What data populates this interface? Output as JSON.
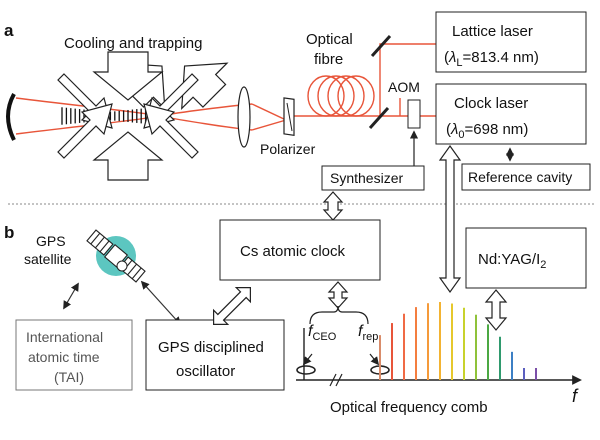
{
  "panel_a": {
    "letter": "a",
    "cooling_label": "Cooling and trapping",
    "fibre_label_1": "Optical",
    "fibre_label_2": "fibre",
    "polarizer_label": "Polarizer",
    "aom_label": "AOM",
    "lattice_laser": {
      "line1": "Lattice laser",
      "lambda_sub": "L",
      "lambda_value": "=813.4 nm"
    },
    "clock_laser": {
      "line1": "Clock laser",
      "lambda_sub": "0",
      "lambda_value": "=698 nm"
    },
    "synthesizer_label": "Synthesizer",
    "reference_cavity_label": "Reference cavity"
  },
  "panel_b": {
    "letter": "b",
    "gps_satellite_1": "GPS",
    "gps_satellite_2": "satellite",
    "cs_clock_label": "Cs atomic clock",
    "ndyag_main": "Nd:YAG/I",
    "ndyag_sub": "2",
    "tai_1": "International",
    "tai_2": "atomic time",
    "tai_3": "(TAI)",
    "gpsdo_1": "GPS disciplined",
    "gpsdo_2": "oscillator",
    "fceo_main": "f",
    "fceo_sub": "CEO",
    "frep_main": "f",
    "frep_sub": "rep",
    "comb_label": "Optical frequency comb",
    "axis_label": "f"
  },
  "colors": {
    "laser_beam": "#e8553a",
    "satellite_glow": "#5cc6c0",
    "comb": [
      "#d98c6a",
      "#e8553a",
      "#f06a45",
      "#f47e3f",
      "#f59a3a",
      "#f3b332",
      "#e6c82c",
      "#c8d22c",
      "#8fc23a",
      "#4ba843",
      "#2f9a6e",
      "#3c7fc4",
      "#5b5fbf",
      "#7b4fa8"
    ]
  }
}
